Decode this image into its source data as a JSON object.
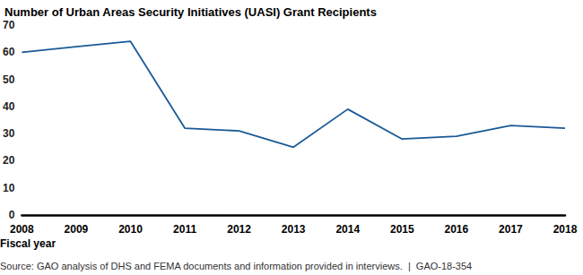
{
  "chart_data": {
    "type": "line",
    "title": "Number of Urban Areas Security Initiatives (UASI) Grant Recipients",
    "xlabel": "Fiscal year",
    "annotations": [
      "Source: GAO analysis of DHS and FEMA documents and information provided in interviews.  |  GAO-18-354"
    ],
    "categories": [
      "2008",
      "2009",
      "2010",
      "2011",
      "2012",
      "2013",
      "2014",
      "2015",
      "2016",
      "2017",
      "2018"
    ],
    "values": [
      60,
      62,
      64,
      32,
      31,
      25,
      39,
      28,
      29,
      33,
      32
    ],
    "color": "#1a5a96",
    "ylim": [
      0,
      70
    ],
    "yticks": [
      0,
      10,
      20,
      30,
      40,
      50,
      60,
      70
    ],
    "grid": false
  }
}
